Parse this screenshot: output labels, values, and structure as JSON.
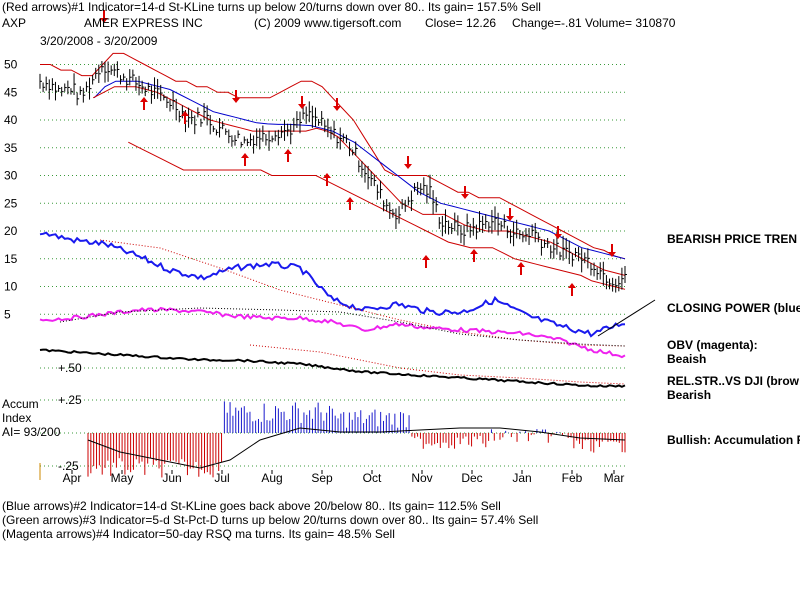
{
  "header": {
    "line1": "(Red arrows)#1 Indicator=14-d St-KLine turns up below 20/turns down over 80.. Its gain= 157.5% Sell",
    "symbol": "AXP",
    "company": "AMER EXPRESS INC",
    "copyright": "(C) 2009 www.tigersoft.com",
    "close": "Close=  12.26",
    "change": "Change=-.81",
    "volume": "Volume=  310870",
    "dates": "3/20/2008 - 3/20/2009"
  },
  "footer": {
    "line1": "(Blue arrows)#2 Indicator=14-d St-KLine goes back above 20/below 80.. Its gain= 112.5% Sell",
    "line2": "(Green arrows)#3 Indicator=5-d St-Pct-D turns up below 20/turns down over 80.. Its gain= 57.4% Sell",
    "line3": "(Magenta arrows)#4 Indicator=50-day RSQ ma turns. Its gain= 48.5% Sell"
  },
  "right_labels": {
    "bearish_price": "BEARISH PRICE TREN",
    "closing_power": "CLOSING POWER (blue",
    "obv_title": "OBV (magenta):",
    "obv_state": "Beaish",
    "relstr_title": "REL.STR..VS DJI (brow",
    "relstr_state": "Bearish",
    "accum_state": "Bullish: Accumulation R"
  },
  "accum_labels": {
    "line1": "Accum",
    "line2": "Index",
    "line3": "AI= 93/200"
  },
  "chart_data": {
    "type": "line",
    "price_axis": {
      "ticks": [
        50,
        45,
        40,
        35,
        30,
        25,
        20,
        15,
        10,
        5
      ]
    },
    "accum_axis": {
      "ticks": [
        "+.50",
        "+.25",
        "-.25"
      ]
    },
    "months": [
      "Apr",
      "May",
      "Jun",
      "Jul",
      "Aug",
      "Sep",
      "Oct",
      "Nov",
      "Dec",
      "Jan",
      "Feb",
      "Mar"
    ],
    "price_close": [
      47,
      46.5,
      45,
      46,
      44,
      47,
      50,
      49,
      48,
      47,
      46,
      45,
      44,
      43,
      41,
      40,
      41,
      39,
      38,
      37,
      36,
      37,
      37,
      38,
      38,
      39,
      41,
      40,
      38,
      37,
      36,
      33,
      30,
      27,
      24,
      23,
      26,
      28,
      27,
      22,
      21,
      20,
      20.5,
      21,
      22,
      21,
      20,
      19,
      20,
      18,
      17,
      16,
      16,
      15,
      14,
      12,
      11,
      12.26
    ],
    "upper_band": [
      50,
      50,
      49,
      49,
      48,
      48,
      50,
      52,
      52,
      51,
      50,
      49,
      48,
      47,
      47,
      46,
      46,
      45,
      45,
      44,
      44,
      44,
      44,
      45,
      46,
      47,
      47,
      46,
      44,
      42,
      40,
      37,
      34,
      31,
      30,
      30,
      30,
      30,
      29,
      28,
      27,
      27,
      26,
      26,
      26,
      25,
      24,
      23,
      22,
      21,
      20,
      19,
      18,
      17,
      16.5,
      15.5,
      15
    ],
    "lower_band": [
      null,
      null,
      null,
      null,
      null,
      null,
      null,
      null,
      36,
      35,
      34,
      33,
      32,
      31,
      31,
      31,
      31,
      31,
      31,
      31,
      31,
      30,
      30,
      30,
      30,
      30,
      29,
      28,
      27,
      26,
      25,
      24,
      23,
      22,
      21,
      20,
      19,
      18,
      17.5,
      17,
      17,
      17,
      16,
      15,
      14.5,
      14,
      13.5,
      13,
      12.5,
      12,
      11,
      10.5,
      10,
      9.5
    ],
    "ma_blue": [
      null,
      null,
      null,
      null,
      null,
      44,
      46,
      47,
      47,
      47,
      46.5,
      46,
      45.5,
      44.5,
      43.5,
      42.5,
      41.5,
      41,
      40.5,
      40,
      39.5,
      39.3,
      39.2,
      39.2,
      39.1,
      39,
      38.5,
      38,
      37,
      36,
      34.5,
      33,
      31.5,
      30,
      28.5,
      27,
      26,
      25,
      24.5,
      24,
      23.5,
      23,
      22.5,
      22,
      21.5,
      21,
      20.5,
      20,
      19,
      18,
      17,
      16.5,
      16,
      15.5,
      15
    ],
    "ma_red": [
      null,
      null,
      null,
      null,
      null,
      44,
      45,
      46,
      46,
      46,
      45.5,
      45,
      44,
      43,
      42,
      41,
      40,
      39.5,
      39,
      38.5,
      38,
      38,
      38,
      38,
      38,
      38,
      38.5,
      38,
      37,
      35,
      33,
      31,
      29,
      27,
      25,
      24,
      23,
      23,
      23,
      22,
      21,
      20.5,
      20,
      20,
      20,
      19.5,
      19,
      18.5,
      18,
      17,
      16,
      15,
      14,
      13,
      12.5,
      12
    ],
    "red_arrows_down_x": [
      3,
      28,
      33,
      40,
      53,
      59,
      68,
      70,
      77
    ],
    "red_arrows_up_x": [
      4,
      11,
      16,
      21,
      25,
      32,
      37,
      49,
      53,
      64,
      71
    ],
    "annotations": [
      "BEARISH PRICE TREN",
      "CLOSING POWER (blue",
      "OBV (magenta):",
      "Beaish",
      "REL.STR..VS DJI (brow",
      "Bearish",
      "Bullish: Accumulation R"
    ]
  }
}
